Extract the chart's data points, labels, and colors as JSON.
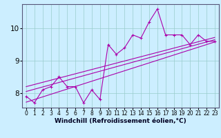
{
  "x_data": [
    0,
    1,
    2,
    3,
    4,
    5,
    6,
    7,
    8,
    9,
    10,
    11,
    12,
    13,
    14,
    15,
    16,
    17,
    18,
    19,
    20,
    21,
    22,
    23
  ],
  "y_data": [
    7.9,
    7.7,
    8.1,
    8.2,
    8.5,
    8.2,
    8.2,
    7.7,
    8.1,
    7.8,
    9.5,
    9.2,
    9.4,
    9.8,
    9.7,
    10.2,
    10.6,
    9.8,
    9.8,
    9.8,
    9.5,
    9.8,
    9.6,
    9.6
  ],
  "trend1": {
    "x": [
      0,
      23
    ],
    "y": [
      8.05,
      9.65
    ]
  },
  "trend2": {
    "x": [
      0,
      23
    ],
    "y": [
      8.2,
      9.72
    ]
  },
  "trend3": {
    "x": [
      0,
      23
    ],
    "y": [
      7.72,
      9.58
    ]
  },
  "line_color": "#aa00aa",
  "bg_color": "#cceeff",
  "grid_color": "#99cccc",
  "ylim": [
    7.55,
    10.75
  ],
  "xlim": [
    -0.5,
    23.5
  ],
  "yticks": [
    8,
    9,
    10
  ],
  "xticks": [
    0,
    1,
    2,
    3,
    4,
    5,
    6,
    7,
    8,
    9,
    10,
    11,
    12,
    13,
    14,
    15,
    16,
    17,
    18,
    19,
    20,
    21,
    22,
    23
  ],
  "xlabel": "Windchill (Refroidissement éolien,°C)",
  "marker": "+",
  "markersize": 3.5,
  "linewidth": 0.8,
  "tick_fontsize": 5.5,
  "xlabel_fontsize": 6.5
}
